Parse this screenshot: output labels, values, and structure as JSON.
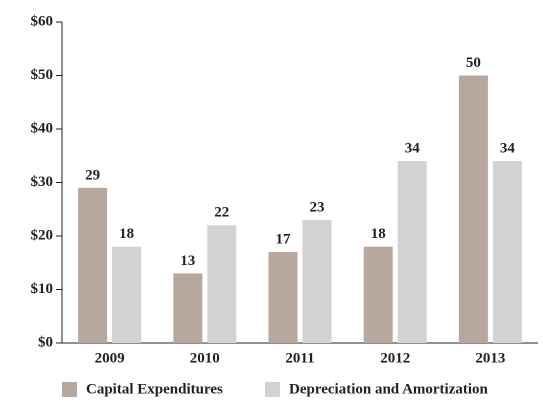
{
  "chart_data": {
    "type": "bar",
    "categories": [
      "2009",
      "2010",
      "2011",
      "2012",
      "2013"
    ],
    "series": [
      {
        "name": "Capital Expenditures",
        "color": "#b8a79d",
        "values": [
          29,
          13,
          17,
          18,
          50
        ]
      },
      {
        "name": "Depreciation and Amortization",
        "color": "#d1d2d4",
        "values": [
          18,
          22,
          23,
          34,
          34
        ]
      }
    ],
    "ylim": [
      0,
      60
    ],
    "yticks": [
      {
        "value": 0,
        "label": "$0"
      },
      {
        "value": 10,
        "label": "$10"
      },
      {
        "value": 20,
        "label": "$20"
      },
      {
        "value": 30,
        "label": "$30"
      },
      {
        "value": 40,
        "label": "$40"
      },
      {
        "value": 50,
        "label": "$50"
      },
      {
        "value": 60,
        "label": "$60"
      }
    ],
    "legend": "bottom"
  }
}
